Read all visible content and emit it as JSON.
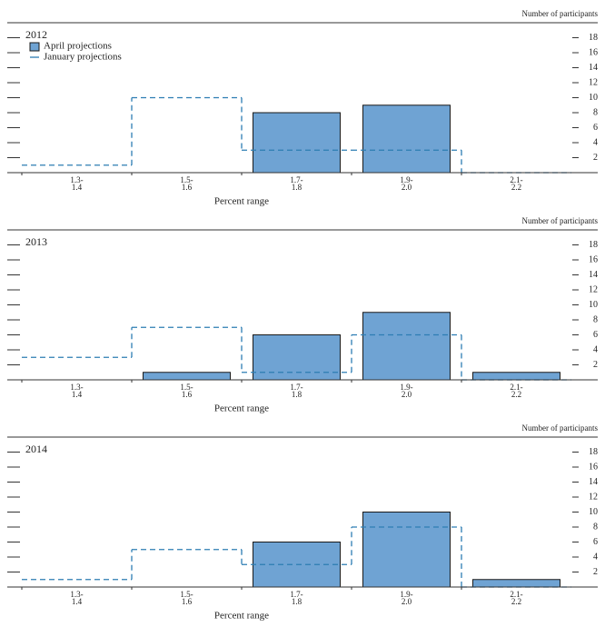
{
  "chart_data": [
    {
      "type": "bar",
      "title": "2012",
      "y_label": "Number of participants",
      "x_label": "Percent range",
      "categories": [
        "1.3-1.4",
        "1.5-1.6",
        "1.7-1.8",
        "1.9-2.0",
        "2.1-2.2"
      ],
      "series": [
        {
          "name": "April projections",
          "color": "#6fa3d3",
          "style": "bar",
          "values": [
            0,
            0,
            8,
            9,
            0
          ]
        },
        {
          "name": "January projections",
          "color": "#2d7db3",
          "style": "dashed-step",
          "values": [
            1,
            10,
            3,
            3,
            0
          ]
        }
      ],
      "ylim": [
        0,
        20
      ],
      "yticks": [
        2,
        4,
        6,
        8,
        10,
        12,
        14,
        16,
        18
      ],
      "legend": true
    },
    {
      "type": "bar",
      "title": "2013",
      "y_label": "Number of participants",
      "x_label": "Percent range",
      "categories": [
        "1.3-1.4",
        "1.5-1.6",
        "1.7-1.8",
        "1.9-2.0",
        "2.1-2.2"
      ],
      "series": [
        {
          "color": "#6fa3d3",
          "style": "bar",
          "values": [
            0,
            1,
            6,
            9,
            1
          ]
        },
        {
          "color": "#2d7db3",
          "style": "dashed-step",
          "values": [
            3,
            7,
            1,
            6,
            0
          ]
        }
      ],
      "ylim": [
        0,
        20
      ],
      "yticks": [
        2,
        4,
        6,
        8,
        10,
        12,
        14,
        16,
        18
      ],
      "legend": false
    },
    {
      "type": "bar",
      "title": "2014",
      "y_label": "Number of participants",
      "x_label": "Percent range",
      "categories": [
        "1.3-1.4",
        "1.5-1.6",
        "1.7-1.8",
        "1.9-2.0",
        "2.1-2.2"
      ],
      "series": [
        {
          "color": "#6fa3d3",
          "style": "bar",
          "values": [
            0,
            0,
            6,
            10,
            1
          ]
        },
        {
          "color": "#2d7db3",
          "style": "dashed-step",
          "values": [
            1,
            5,
            3,
            8,
            0
          ]
        }
      ],
      "ylim": [
        0,
        20
      ],
      "yticks": [
        2,
        4,
        6,
        8,
        10,
        12,
        14,
        16,
        18
      ],
      "legend": false
    }
  ]
}
